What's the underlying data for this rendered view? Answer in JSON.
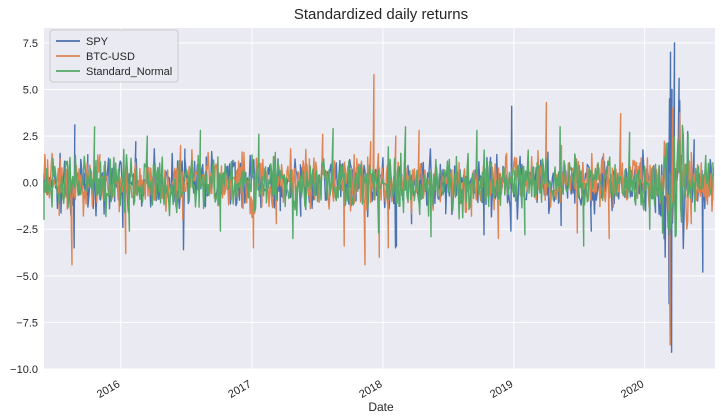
{
  "chart_data": {
    "type": "line",
    "title": "Standardized daily returns",
    "xlabel": "Date",
    "ylabel": "",
    "x_range": [
      "2015-06-01",
      "2020-07-15"
    ],
    "ylim": [
      -10.0,
      8.3
    ],
    "grid": true,
    "legend_position": "top-left",
    "x_ticks": [
      {
        "label": "2016",
        "value": "2016-01-01"
      },
      {
        "label": "2017",
        "value": "2017-01-01"
      },
      {
        "label": "2018",
        "value": "2018-01-01"
      },
      {
        "label": "2019",
        "value": "2019-01-01"
      },
      {
        "label": "2020",
        "value": "2020-01-01"
      }
    ],
    "y_ticks": [
      {
        "label": "7.5",
        "value": 7.5
      },
      {
        "label": "5.0",
        "value": 5.0
      },
      {
        "label": "2.5",
        "value": 2.5
      },
      {
        "label": "0.0",
        "value": 0.0
      },
      {
        "label": "−2.5",
        "value": -2.5
      },
      {
        "label": "−5.0",
        "value": -5.0
      },
      {
        "label": "−7.5",
        "value": -7.5
      },
      {
        "label": "−10.0",
        "value": -10.0
      }
    ],
    "series": [
      {
        "name": "SPY",
        "color": "#4c72b0",
        "points": [
          [
            "2015-06-01",
            0.5
          ],
          [
            "2015-08-20",
            -1.2
          ],
          [
            "2015-08-24",
            -3.5
          ],
          [
            "2015-08-26",
            3.1
          ],
          [
            "2015-10-01",
            1.5
          ],
          [
            "2015-12-15",
            -1.0
          ],
          [
            "2016-01-07",
            -2.4
          ],
          [
            "2016-02-12",
            2.2
          ],
          [
            "2016-06-24",
            -3.6
          ],
          [
            "2016-06-28",
            1.8
          ],
          [
            "2016-11-09",
            1.2
          ],
          [
            "2017-03-21",
            -1.5
          ],
          [
            "2017-05-17",
            -1.8
          ],
          [
            "2017-09-12",
            0.8
          ],
          [
            "2018-02-05",
            -3.5
          ],
          [
            "2018-02-08",
            -3.4
          ],
          [
            "2018-03-22",
            -2.2
          ],
          [
            "2018-06-25",
            -1.1
          ],
          [
            "2018-10-10",
            -2.8
          ],
          [
            "2018-12-24",
            -2.6
          ],
          [
            "2018-12-26",
            4.1
          ],
          [
            "2019-05-13",
            -2.3
          ],
          [
            "2019-08-05",
            -2.6
          ],
          [
            "2019-10-02",
            -1.5
          ],
          [
            "2020-01-31",
            -1.6
          ],
          [
            "2020-02-24",
            -3.0
          ],
          [
            "2020-02-27",
            -4.0
          ],
          [
            "2020-03-09",
            -6.5
          ],
          [
            "2020-03-10",
            4.5
          ],
          [
            "2020-03-12",
            -8.7
          ],
          [
            "2020-03-13",
            7.0
          ],
          [
            "2020-03-16",
            -9.1
          ],
          [
            "2020-03-17",
            5.0
          ],
          [
            "2020-03-24",
            7.5
          ],
          [
            "2020-04-06",
            5.6
          ],
          [
            "2020-04-20",
            -1.5
          ],
          [
            "2020-05-18",
            2.3
          ],
          [
            "2020-06-11",
            -4.8
          ],
          [
            "2020-07-10",
            0.8
          ]
        ]
      },
      {
        "name": "BTC-USD",
        "color": "#dd8452",
        "points": [
          [
            "2015-06-01",
            0.4
          ],
          [
            "2015-08-18",
            -4.4
          ],
          [
            "2015-11-04",
            1.5
          ],
          [
            "2016-01-15",
            -3.8
          ],
          [
            "2016-06-16",
            2.0
          ],
          [
            "2016-06-22",
            -2.0
          ],
          [
            "2017-01-05",
            -3.5
          ],
          [
            "2017-03-10",
            -2.2
          ],
          [
            "2017-07-17",
            2.6
          ],
          [
            "2017-09-15",
            -3.4
          ],
          [
            "2017-10-13",
            1.5
          ],
          [
            "2017-11-12",
            -4.4
          ],
          [
            "2017-11-28",
            2.2
          ],
          [
            "2017-12-07",
            5.8
          ],
          [
            "2017-12-22",
            -4.0
          ],
          [
            "2018-01-16",
            -3.5
          ],
          [
            "2018-02-06",
            2.5
          ],
          [
            "2018-04-12",
            2.8
          ],
          [
            "2018-09-05",
            -1.8
          ],
          [
            "2018-11-19",
            -3.0
          ],
          [
            "2019-04-02",
            4.3
          ],
          [
            "2019-05-14",
            2.0
          ],
          [
            "2019-06-27",
            -2.7
          ],
          [
            "2019-09-24",
            -3.0
          ],
          [
            "2019-10-26",
            3.7
          ],
          [
            "2020-03-12",
            -8.7
          ],
          [
            "2020-03-19",
            4.0
          ],
          [
            "2020-05-10",
            -2.2
          ],
          [
            "2020-07-10",
            0.3
          ]
        ]
      },
      {
        "name": "Standard_Normal",
        "color": "#55a868",
        "points": [
          [
            "2015-06-01",
            -2.0
          ],
          [
            "2015-10-20",
            3.0
          ],
          [
            "2016-01-25",
            -2.6
          ],
          [
            "2016-03-15",
            2.5
          ],
          [
            "2016-08-10",
            2.8
          ],
          [
            "2016-10-05",
            -2.6
          ],
          [
            "2017-01-20",
            2.6
          ],
          [
            "2017-04-25",
            -3.0
          ],
          [
            "2017-08-15",
            2.9
          ],
          [
            "2017-12-20",
            -2.7
          ],
          [
            "2018-03-05",
            3.0
          ],
          [
            "2018-05-15",
            -2.9
          ],
          [
            "2018-09-20",
            2.8
          ],
          [
            "2019-02-01",
            -2.8
          ],
          [
            "2019-05-10",
            3.0
          ],
          [
            "2019-07-15",
            -3.4
          ],
          [
            "2019-11-20",
            2.7
          ],
          [
            "2020-01-15",
            -2.5
          ],
          [
            "2020-03-10",
            -2.8
          ],
          [
            "2020-05-01",
            2.6
          ],
          [
            "2020-07-10",
            0.5
          ]
        ]
      }
    ]
  }
}
